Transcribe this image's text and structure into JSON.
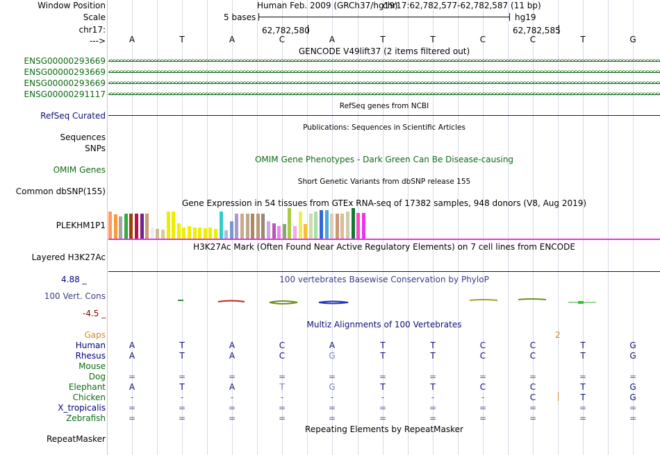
{
  "header": {
    "window_position_label": "Window Position",
    "scale_label": "Scale",
    "chrom_label": "chr17:",
    "arrow_label": "--->",
    "assembly_text": "Human Feb. 2009 (GRCh37/hg19)",
    "position_text": "chr17:62,782,577-62,782,587 (11 bp)",
    "scale_text": "5 bases",
    "db_text": "hg19",
    "pos_left": "62,782,580",
    "pos_right": "62,782,585"
  },
  "bases": [
    "A",
    "T",
    "A",
    "C",
    "A",
    "T",
    "T",
    "C",
    "C",
    "T",
    "G"
  ],
  "gencode": {
    "title": "GENCODE V49lift37 (2 items filtered out)",
    "genes": [
      "ENSG00000293669",
      "ENSG00000293669",
      "ENSG00000293669",
      "ENSG00000291117"
    ],
    "strand_glyphs": "<<<<<<<<<<<<<<<<<<<<<<<<<<<<<<<<<<<<<<<<<<<<<<<<<<<<<<<<<<<<<<<<<<<<<<<<<<<<<<<<<<<<<<<<<<<<<<<<<<<<<<<<<<<<<<<<<<<<<<<<<<<<<<<<<<<<<<<<<<<<<<<<<<<<<<<<<<<<<<<<<<<<<<<<<<<<<<<<<<<<<<<<<<<"
  },
  "refseq": {
    "label": "RefSeq Curated",
    "title": "RefSeq genes from NCBI"
  },
  "publications": {
    "title": "Publications: Sequences in Scientific Articles",
    "sequences_label": "Sequences",
    "snps_label": "SNPs"
  },
  "omim": {
    "label": "OMIM Genes",
    "title": "OMIM Gene Phenotypes - Dark Green Can Be Disease-causing"
  },
  "dbsnp": {
    "label": "Common dbSNP(155)",
    "title": "Short Genetic Variants from dbSNP release 155"
  },
  "gtex": {
    "title": "Gene Expression in 54 tissues from GTEx RNA-seq of 17382 samples, 948 donors (V8, Aug 2019)",
    "label": "PLEKHM1P1",
    "bars": [
      {
        "v": 0.85,
        "c": "#ff9966"
      },
      {
        "v": 0.75,
        "c": "#ff9933"
      },
      {
        "v": 0.7,
        "c": "#a6a6a6"
      },
      {
        "v": 0.78,
        "c": "#33aa44"
      },
      {
        "v": 0.78,
        "c": "#994400"
      },
      {
        "v": 0.78,
        "c": "#bb1144"
      },
      {
        "v": 0.78,
        "c": "#772288"
      },
      {
        "v": 0.78,
        "c": "#cc9977"
      },
      {
        "v": 0.35,
        "c": "#eeeeee"
      },
      {
        "v": 0.3,
        "c": "#ccbb99"
      },
      {
        "v": 0.28,
        "c": "#ddcc88"
      },
      {
        "v": 0.85,
        "c": "#eeee00"
      },
      {
        "v": 0.85,
        "c": "#eeee00"
      },
      {
        "v": 0.48,
        "c": "#eeee00"
      },
      {
        "v": 0.35,
        "c": "#eeee00"
      },
      {
        "v": 0.4,
        "c": "#eeee00"
      },
      {
        "v": 0.35,
        "c": "#eeee00"
      },
      {
        "v": 0.35,
        "c": "#eeee00"
      },
      {
        "v": 0.33,
        "c": "#eeee00"
      },
      {
        "v": 0.35,
        "c": "#eeee00"
      },
      {
        "v": 0.3,
        "c": "#eeee00"
      },
      {
        "v": 0.85,
        "c": "#33cccc"
      },
      {
        "v": 0.25,
        "c": "#aabbdd"
      },
      {
        "v": 0.55,
        "c": "#7799cc"
      },
      {
        "v": 0.78,
        "c": "#aa99cc"
      },
      {
        "v": 0.78,
        "c": "#ccaa88"
      },
      {
        "v": 0.78,
        "c": "#bbaa88"
      },
      {
        "v": 0.78,
        "c": "#aa8866"
      },
      {
        "v": 0.78,
        "c": "#bb9977"
      },
      {
        "v": 0.78,
        "c": "#998877"
      },
      {
        "v": 0.55,
        "c": "#ccaadd"
      },
      {
        "v": 0.48,
        "c": "#bb55bb"
      },
      {
        "v": 0.4,
        "c": "#ee88ee"
      },
      {
        "v": 0.45,
        "c": "#88aa66"
      },
      {
        "v": 0.95,
        "c": "#aacc44"
      },
      {
        "v": 0.4,
        "c": "#eeaaee"
      },
      {
        "v": 0.85,
        "c": "#eeee55"
      },
      {
        "v": 0.45,
        "c": "#ffbb33"
      },
      {
        "v": 0.78,
        "c": "#ccddaa"
      },
      {
        "v": 0.85,
        "c": "#aaddaa"
      },
      {
        "v": 0.9,
        "c": "#3366dd"
      },
      {
        "v": 0.9,
        "c": "#44aadd"
      },
      {
        "v": 0.78,
        "c": "#ddccbb"
      },
      {
        "v": 0.78,
        "c": "#cc9977"
      },
      {
        "v": 0.78,
        "c": "#ddbb99"
      },
      {
        "v": 0.85,
        "c": "#ccccaa"
      },
      {
        "v": 0.95,
        "c": "#117733"
      },
      {
        "v": 0.8,
        "c": "#ff44cc"
      },
      {
        "v": 0.8,
        "c": "#ee33ee"
      }
    ]
  },
  "h3k27ac": {
    "label": "Layered H3K27Ac",
    "title": "H3K27Ac Mark (Often Found Near Active Regulatory Elements) on 7 cell lines from ENCODE"
  },
  "conservation": {
    "label": "100 Vert. Cons",
    "title": "100 vertebrates Basewise Conservation by PhyloP",
    "ymax_label": "4.88 _",
    "ymin_label": "-4.5 _"
  },
  "multiz": {
    "title": "Multiz Alignments of 100 Vertebrates",
    "gaps_label": "Gaps",
    "gap_count": "2",
    "species": [
      {
        "name": "Human",
        "color": "#000080",
        "row": [
          "A",
          "T",
          "A",
          "C",
          "A",
          "T",
          "T",
          "C",
          "C",
          "T",
          "G"
        ]
      },
      {
        "name": "Rhesus",
        "color": "#000080",
        "row": [
          "A",
          "T",
          "A",
          "C",
          "G",
          "T",
          "T",
          "C",
          "C",
          "T",
          "G"
        ]
      },
      {
        "name": "Mouse",
        "color": "#0c6b13",
        "row": [
          "",
          "",
          "",
          "",
          "",
          "",
          "",
          "",
          "",
          "",
          ""
        ]
      },
      {
        "name": "Dog",
        "color": "#0c6b13",
        "row": [
          "=",
          "=",
          "=",
          "=",
          "=",
          "=",
          "=",
          "=",
          "=",
          "=",
          "="
        ]
      },
      {
        "name": "Elephant",
        "color": "#0c6b13",
        "row": [
          "A",
          "T",
          "A",
          "T",
          "G",
          "T",
          "T",
          "C",
          "C",
          "T",
          "G"
        ]
      },
      {
        "name": "Chicken",
        "color": "#0c6b13",
        "row": [
          "-",
          "-",
          "-",
          "-",
          "-",
          "-",
          "-",
          "-",
          "C",
          "T",
          "G"
        ]
      },
      {
        "name": "X_tropicalis",
        "color": "#000080",
        "row": [
          "=",
          "=",
          "=",
          "=",
          "=",
          "=",
          "=",
          "=",
          "=",
          "=",
          "="
        ]
      },
      {
        "name": "Zebrafish",
        "color": "#0c6b13",
        "row": [
          "=",
          "=",
          "=",
          "=",
          "=",
          "=",
          "=",
          "=",
          "=",
          "=",
          "="
        ]
      }
    ]
  },
  "repeatmasker": {
    "label": "RepeatMasker",
    "title": "Repeating Elements by RepeatMasker"
  },
  "colors": {
    "gencode": "#0c6b13",
    "refseq": "#0c0c78",
    "omim": "#0c6b13",
    "cons_title": "#3a3a8a",
    "cons_max": "#000080",
    "cons_min": "#8b0000",
    "gaps": "#d2862d",
    "gtex_baseline": "#e233e2"
  }
}
